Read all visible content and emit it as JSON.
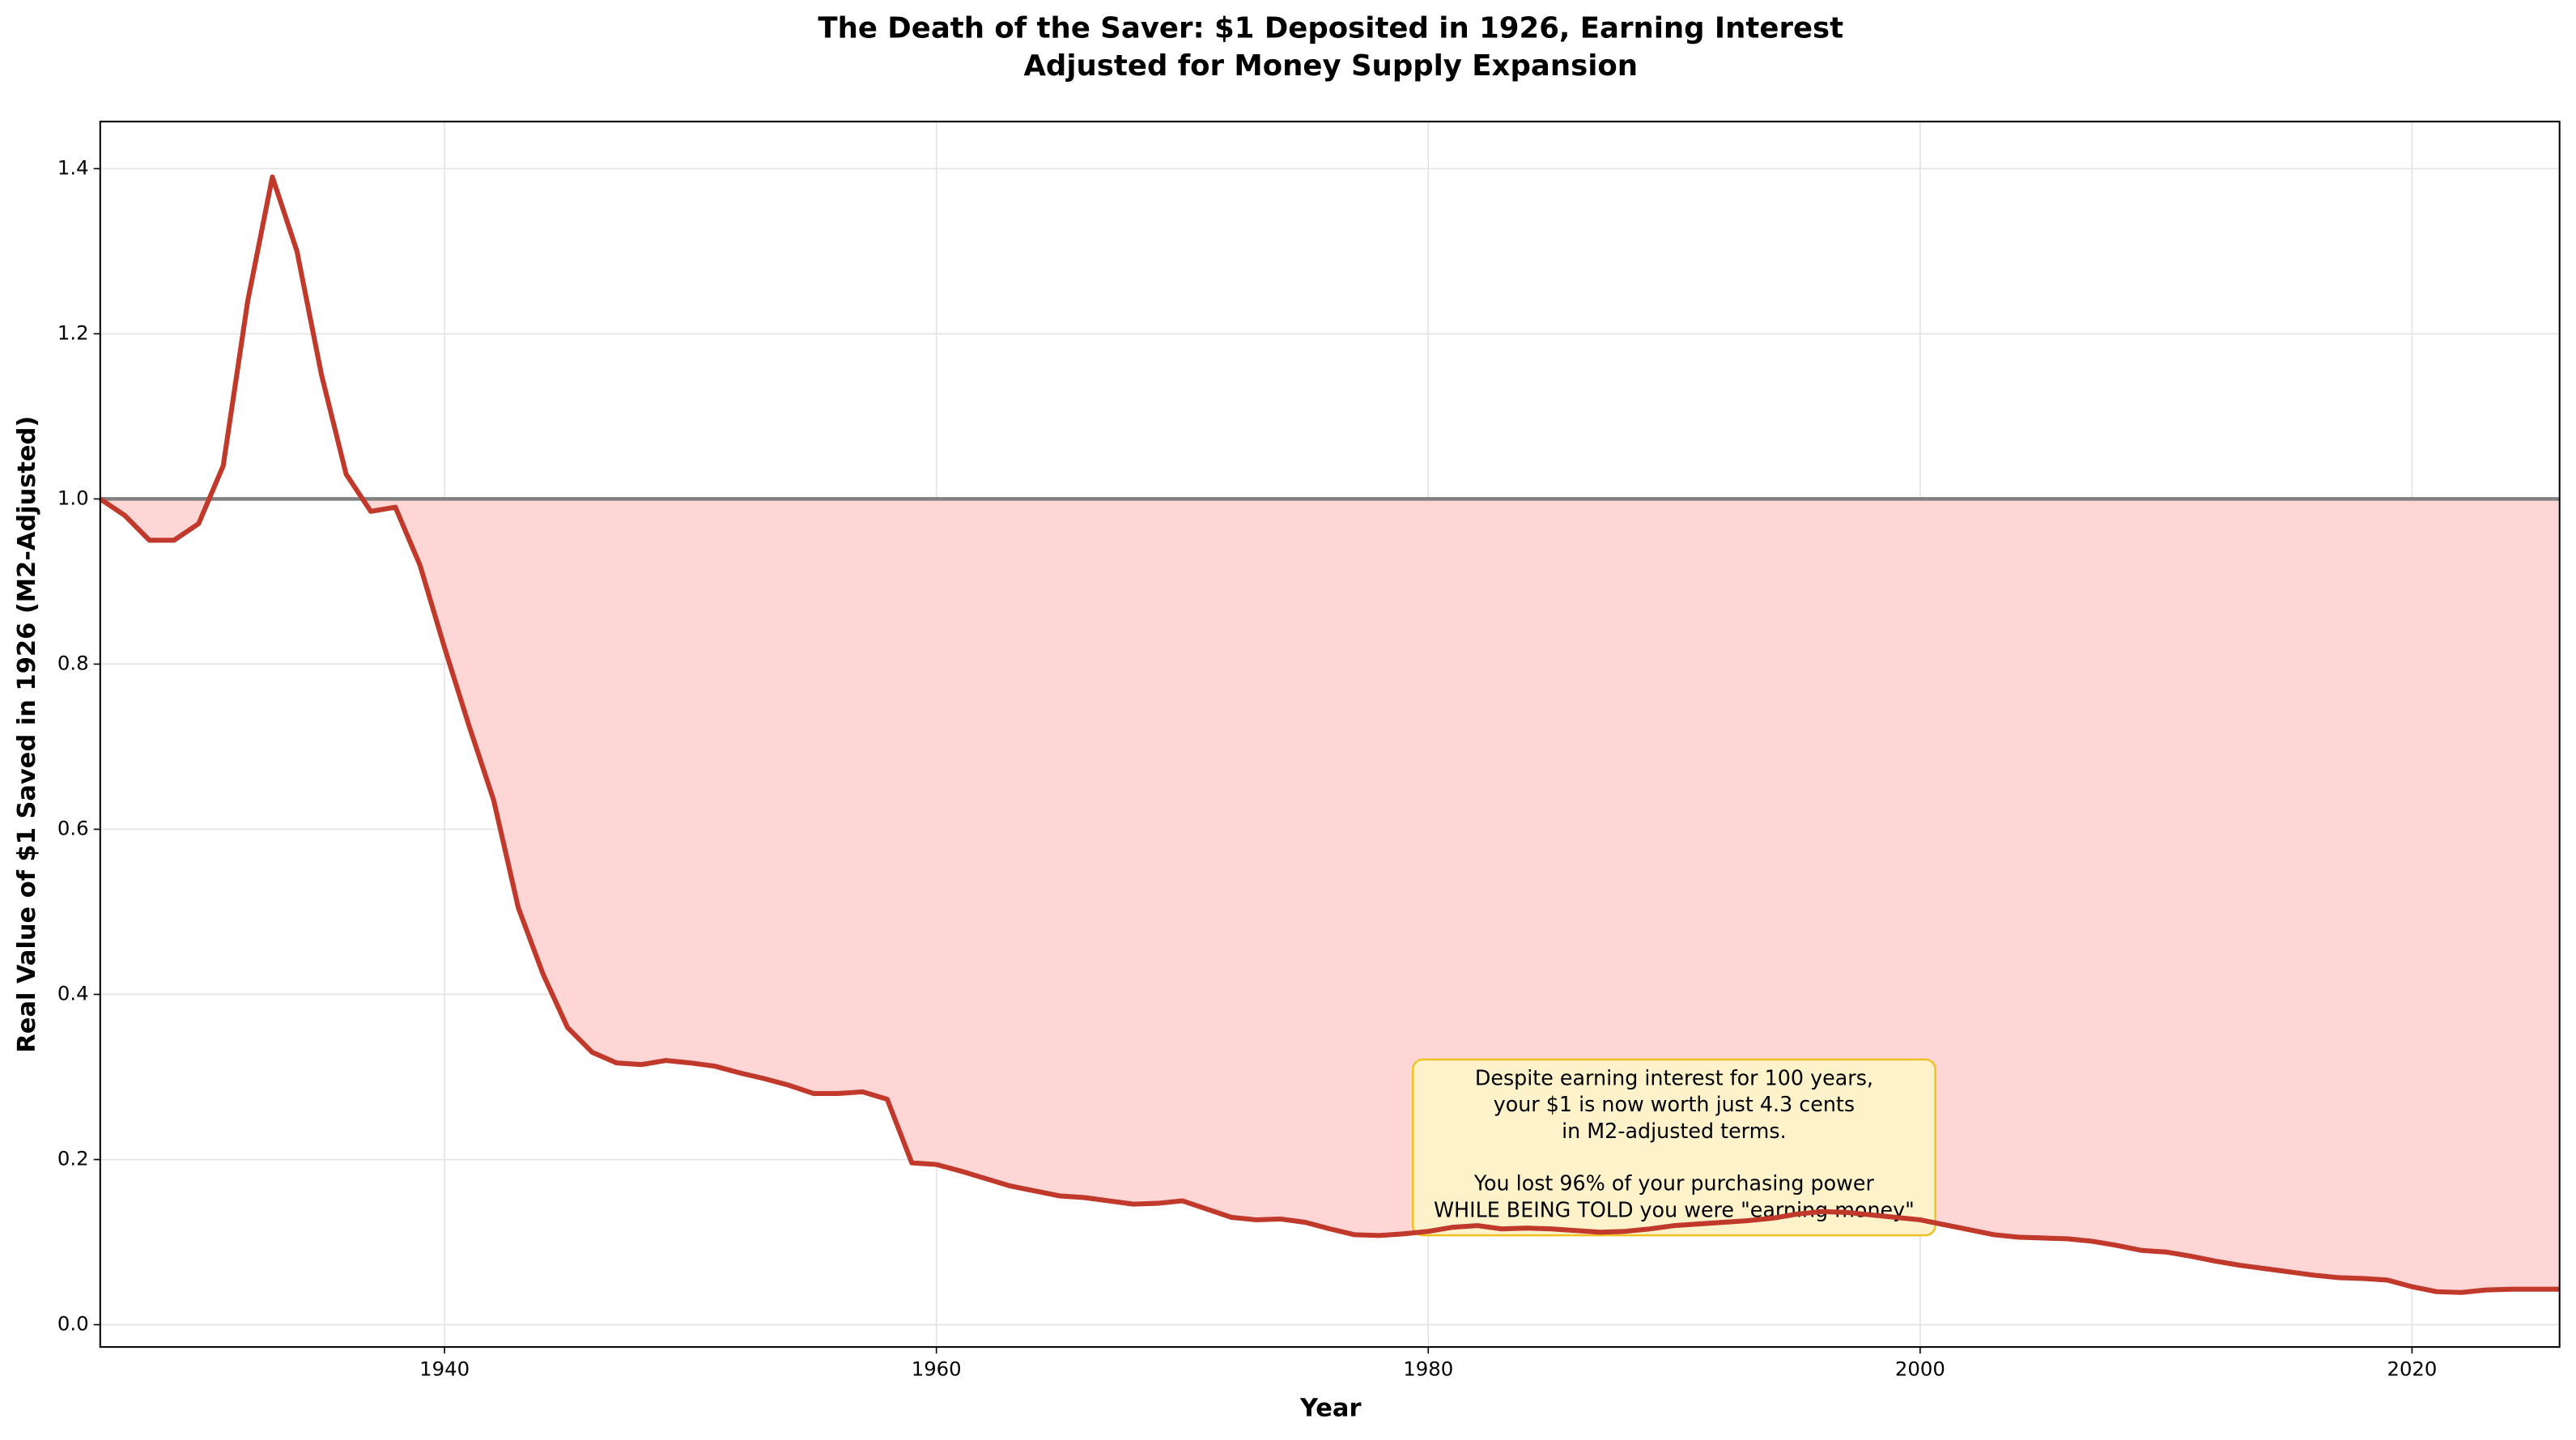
{
  "chart_data": {
    "type": "line",
    "title": [
      "The Death of the Saver: $1 Deposited in 1926, Earning Interest",
      "Adjusted for Money Supply Expansion"
    ],
    "xlabel": "Year",
    "ylabel": "Real Value of $1 Saved in 1926 (M2-Adjusted)",
    "x": [
      1926,
      1927,
      1928,
      1929,
      1930,
      1931,
      1932,
      1933,
      1934,
      1935,
      1936,
      1937,
      1938,
      1939,
      1940,
      1941,
      1942,
      1943,
      1944,
      1945,
      1946,
      1947,
      1948,
      1949,
      1950,
      1951,
      1952,
      1953,
      1954,
      1955,
      1956,
      1957,
      1958,
      1959,
      1960,
      1961,
      1962,
      1963,
      1964,
      1965,
      1966,
      1967,
      1968,
      1969,
      1970,
      1971,
      1972,
      1973,
      1974,
      1975,
      1976,
      1977,
      1978,
      1979,
      1980,
      1981,
      1982,
      1983,
      1984,
      1985,
      1986,
      1987,
      1988,
      1989,
      1990,
      1991,
      1992,
      1993,
      1994,
      1995,
      1996,
      1997,
      1998,
      1999,
      2000,
      2001,
      2002,
      2003,
      2004,
      2005,
      2006,
      2007,
      2008,
      2009,
      2010,
      2011,
      2012,
      2013,
      2014,
      2015,
      2016,
      2017,
      2018,
      2019,
      2020,
      2021,
      2022,
      2023,
      2024,
      2025,
      2026
    ],
    "series": [
      {
        "color": "#c0392b",
        "values": [
          1.0,
          0.98,
          0.95,
          0.95,
          0.97,
          1.04,
          1.24,
          1.39,
          1.3,
          1.15,
          1.03,
          0.985,
          0.99,
          0.92,
          0.82,
          0.725,
          0.635,
          0.505,
          0.425,
          0.36,
          0.33,
          0.317,
          0.315,
          0.32,
          0.317,
          0.313,
          0.305,
          0.298,
          0.29,
          0.28,
          0.28,
          0.282,
          0.273,
          0.196,
          0.194,
          0.186,
          0.177,
          0.168,
          0.162,
          0.156,
          0.154,
          0.15,
          0.146,
          0.147,
          0.15,
          0.14,
          0.13,
          0.127,
          0.128,
          0.124,
          0.116,
          0.109,
          0.108,
          0.11,
          0.113,
          0.118,
          0.12,
          0.116,
          0.117,
          0.116,
          0.114,
          0.112,
          0.113,
          0.116,
          0.12,
          0.122,
          0.124,
          0.126,
          0.129,
          0.134,
          0.137,
          0.136,
          0.133,
          0.13,
          0.127,
          0.121,
          0.115,
          0.109,
          0.106,
          0.105,
          0.104,
          0.101,
          0.096,
          0.09,
          0.088,
          0.083,
          0.077,
          0.072,
          0.068,
          0.064,
          0.06,
          0.057,
          0.056,
          0.054,
          0.046,
          0.04,
          0.039,
          0.042,
          0.043,
          0.043,
          0.043
        ]
      }
    ],
    "fill_color": "#ffd6d6",
    "reference_line": {
      "value": 1,
      "color": "#808080"
    },
    "xlim": [
      1926,
      2026
    ],
    "ylim": [
      -0.027,
      1.457
    ],
    "xticks": [
      1940,
      1960,
      1980,
      2000,
      2020
    ],
    "yticks": [
      {
        "value": 0,
        "label": "0.0"
      },
      0.2,
      0.4,
      0.6,
      0.8,
      {
        "value": 1,
        "label": "1.0"
      },
      1.2,
      1.4
    ],
    "grid": true,
    "annotation": [
      [
        "Despite earning interest for 100 years,",
        "your $1 is now worth just 4.3 cents",
        "in M2-adjusted terms."
      ],
      [
        "You lost 96% of your purchasing power",
        "WHILE BEING TOLD you were \"earning money\""
      ]
    ]
  }
}
